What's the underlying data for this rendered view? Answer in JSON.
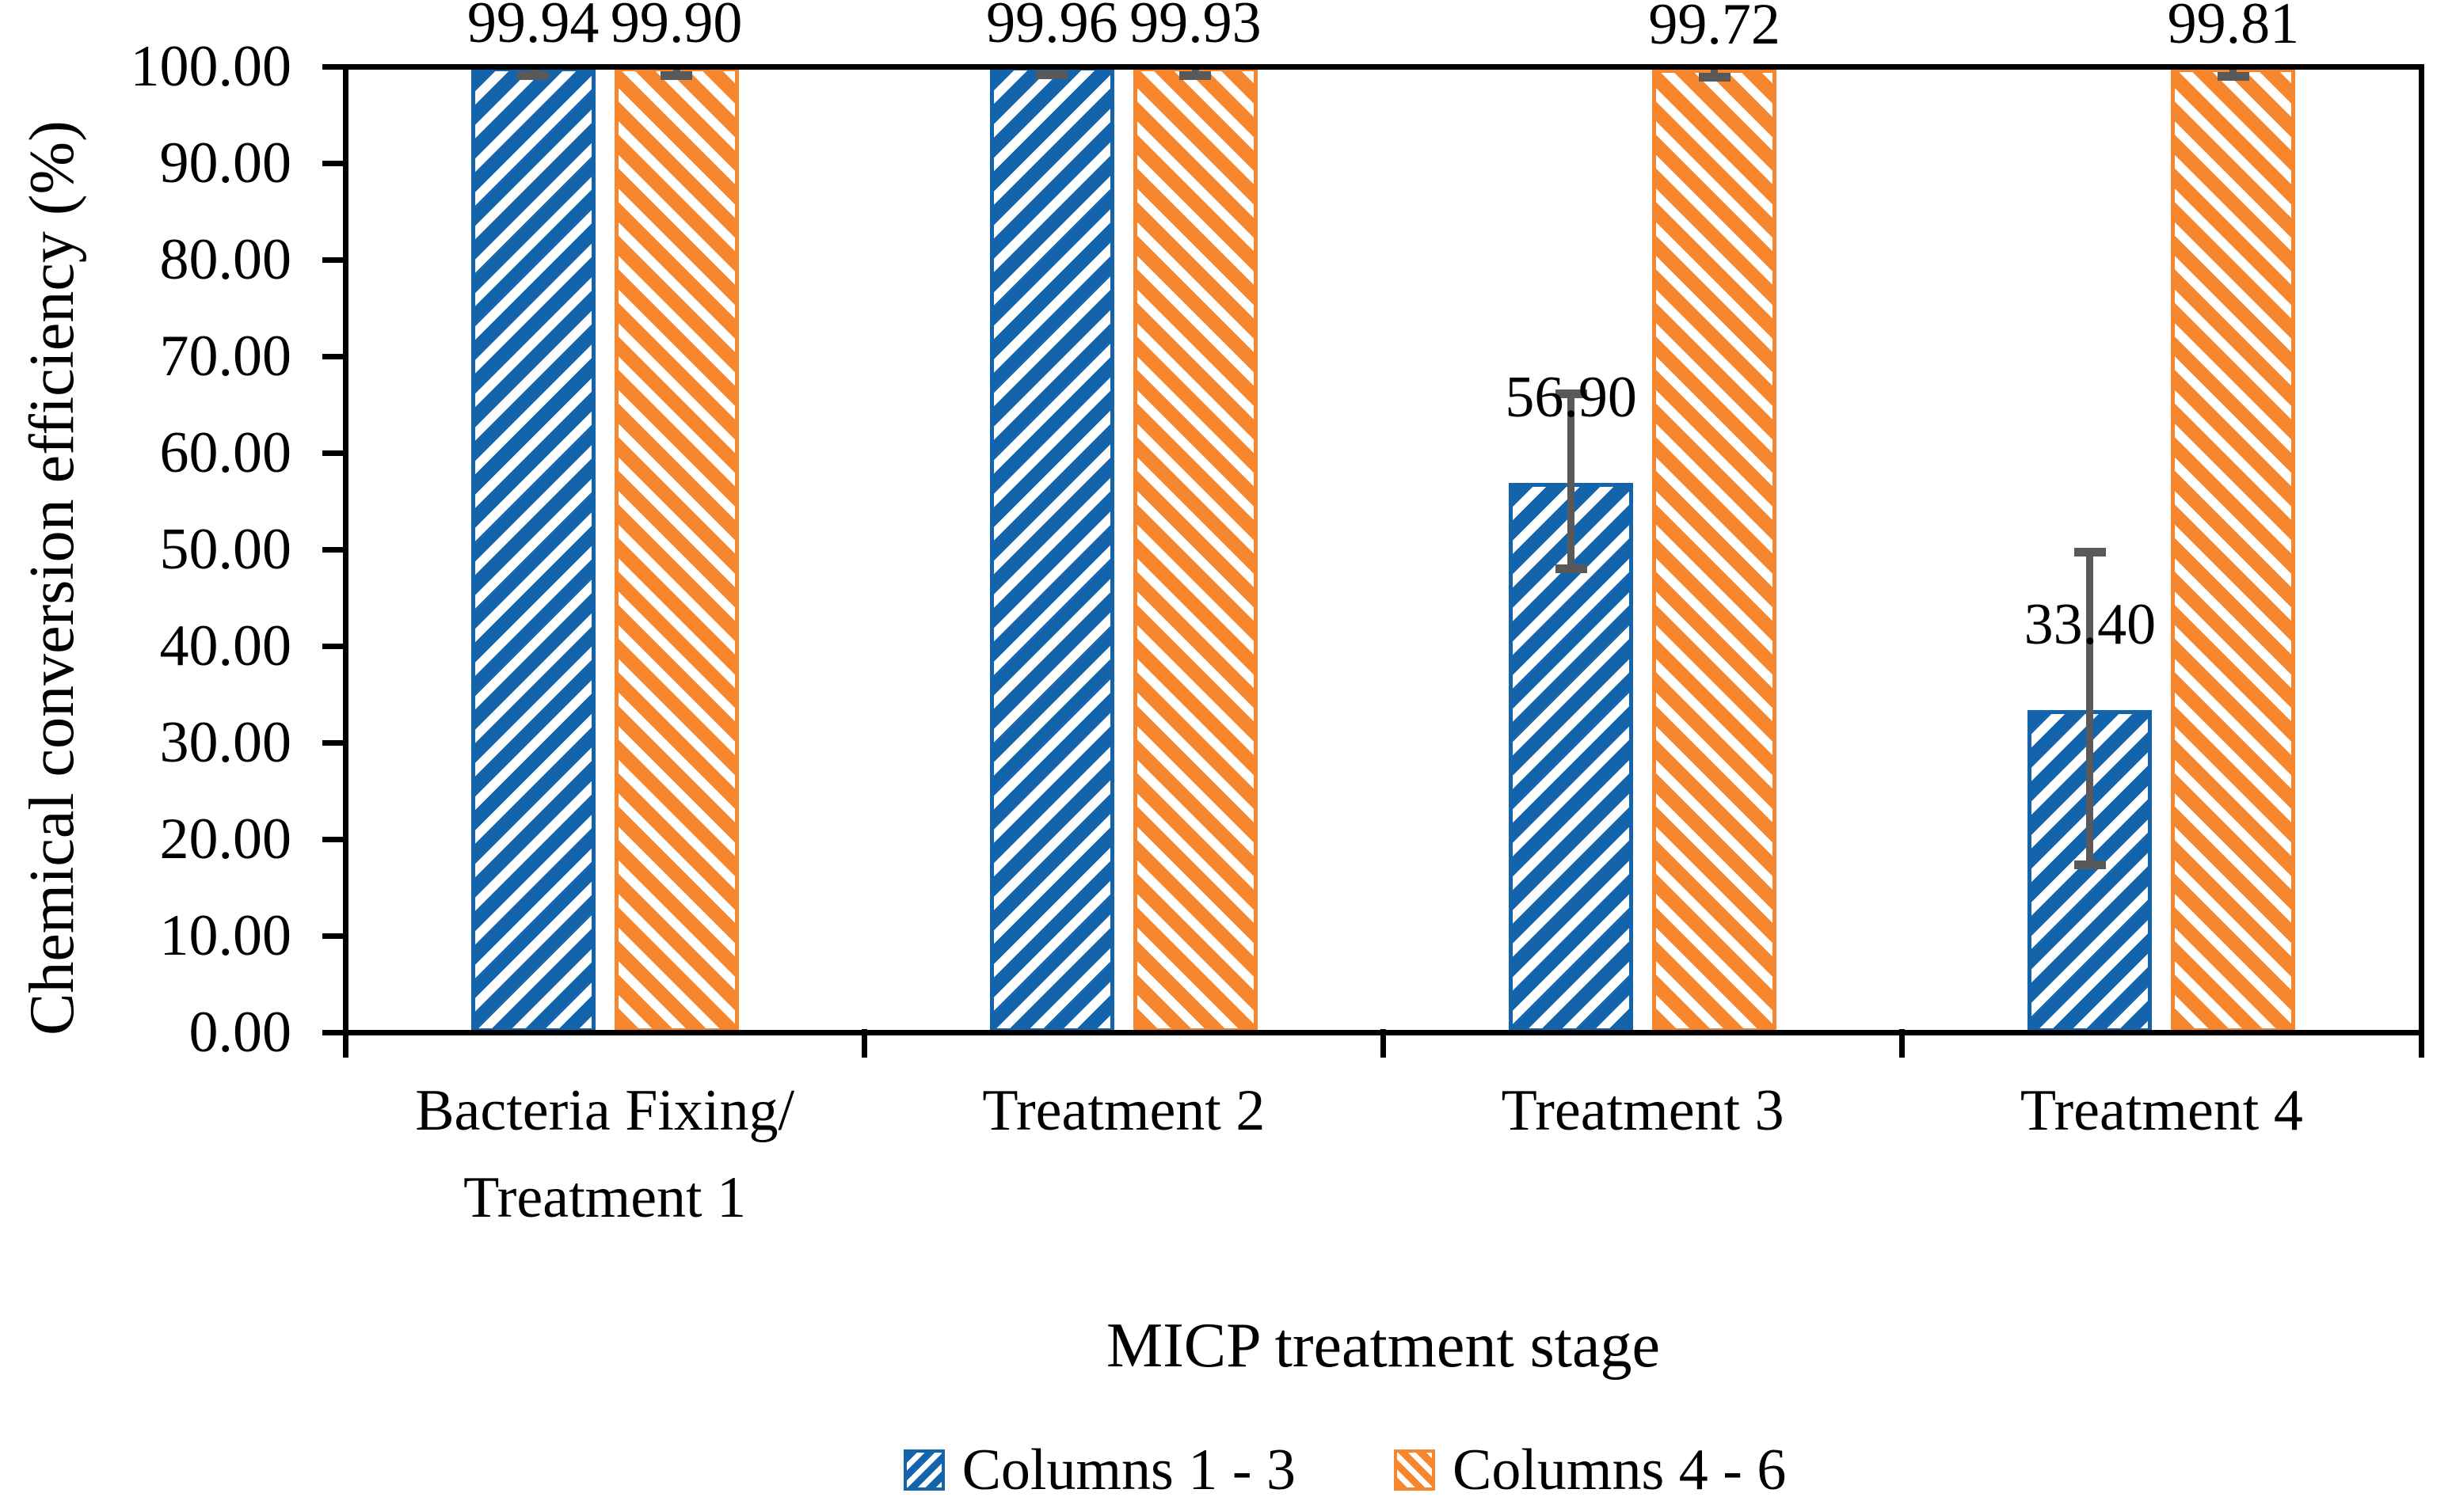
{
  "figure": {
    "background": "#ffffff"
  },
  "chart_data": {
    "type": "bar",
    "title": "",
    "xlabel": "MICP treatment stage",
    "ylabel": "Chemical conversion efficiency (%)",
    "ylim": [
      0,
      100
    ],
    "ytick_step": 10,
    "ytick_labels": [
      "0.00",
      "10.00",
      "20.00",
      "30.00",
      "40.00",
      "50.00",
      "60.00",
      "70.00",
      "80.00",
      "90.00",
      "100.00"
    ],
    "grid": false,
    "legend_position": "bottom",
    "categories": [
      "Bacteria Fixing/\nTreatment 1",
      "Treatment 2",
      "Treatment 3",
      "Treatment 4"
    ],
    "series": [
      {
        "name": "Columns 1 - 3",
        "color": "#1464AC",
        "hatch": "diagonal-up",
        "values": [
          99.94,
          99.96,
          56.9,
          33.4
        ],
        "data_labels": [
          "99.94",
          "99.96",
          "56.90",
          "33.40"
        ],
        "error_plus": [
          0.85,
          0.85,
          9.2,
          16.3
        ],
        "error_minus": [
          0.85,
          0.85,
          8.9,
          16.1
        ]
      },
      {
        "name": "Columns 4 - 6",
        "color": "#F6872E",
        "hatch": "diagonal-down",
        "values": [
          99.9,
          99.93,
          99.72,
          99.81
        ],
        "data_labels": [
          "99.90",
          "99.93",
          "99.72",
          "99.81"
        ],
        "error_plus": [
          0.85,
          0.85,
          0.85,
          0.85
        ],
        "error_minus": [
          0.85,
          0.85,
          0.85,
          0.85
        ]
      }
    ],
    "error_bar_color": "#595959",
    "axis_color": "#000000",
    "text_color": "#000000"
  }
}
